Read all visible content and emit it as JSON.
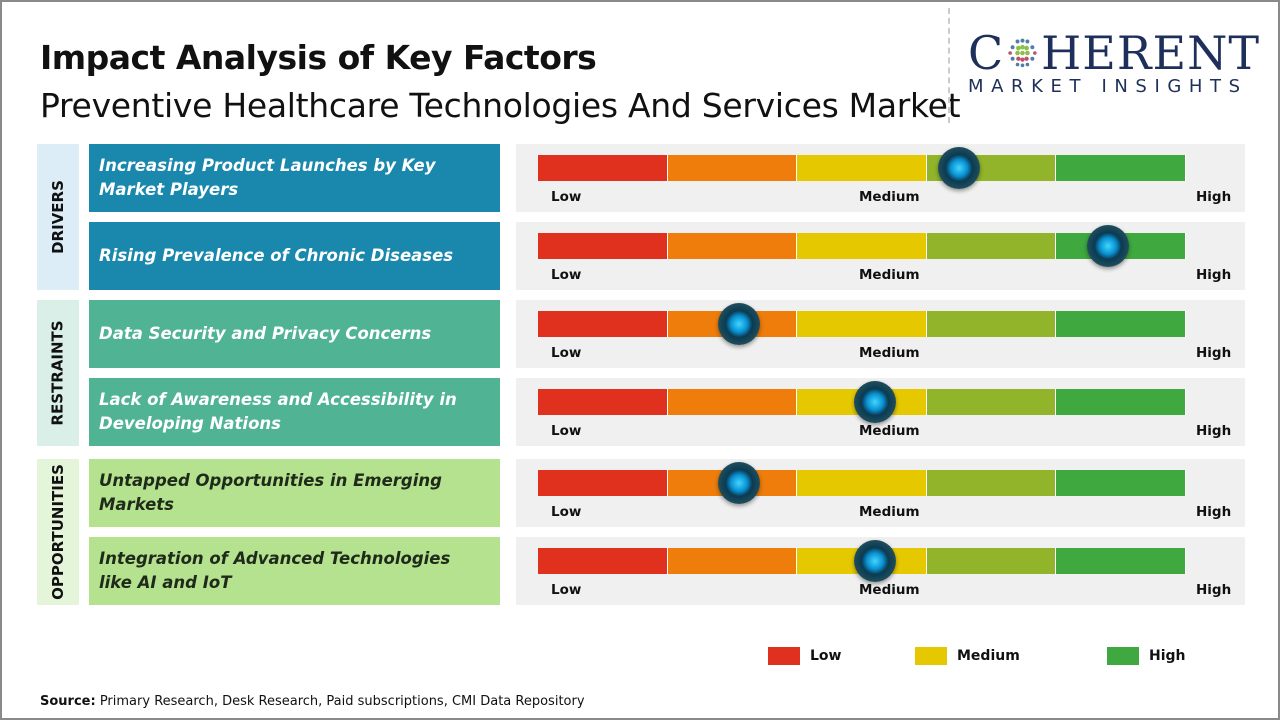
{
  "title": "Impact Analysis of Key Factors",
  "subtitle": "Preventive Healthcare Technologies And Services Market",
  "logo": {
    "main": "COHERENT",
    "sub": "MARKET INSIGHTS"
  },
  "colors": {
    "low": "#e0301e",
    "low_mid": "#ee7d0b",
    "medium": "#e6c800",
    "mid_high": "#92b42a",
    "high": "#3fa83f",
    "drivers": "#1a87ad",
    "restraints": "#4fb394",
    "opportunities": "#b5e28e"
  },
  "scale_labels": {
    "low": "Low",
    "medium": "Medium",
    "high": "High"
  },
  "chart_data": {
    "type": "gauge",
    "scale": [
      "Low",
      "Medium",
      "High"
    ],
    "groups": [
      {
        "name": "DRIVERS",
        "items": [
          {
            "label": "Increasing Product Launches by Key Market Players",
            "impact_pct": 65
          },
          {
            "label": "Rising Prevalence of Chronic Diseases",
            "impact_pct": 88
          }
        ]
      },
      {
        "name": "RESTRAINTS",
        "items": [
          {
            "label": "Data Security and Privacy Concerns",
            "impact_pct": 31
          },
          {
            "label": "Lack of Awareness and Accessibility in Developing Nations",
            "impact_pct": 52
          }
        ]
      },
      {
        "name": "OPPORTUNITIES",
        "items": [
          {
            "label": "Untapped Opportunities in Emerging Markets",
            "impact_pct": 31
          },
          {
            "label": "Integration of Advanced Technologies like AI and IoT",
            "impact_pct": 52
          }
        ]
      }
    ],
    "legend": [
      "Low",
      "Medium",
      "High"
    ]
  },
  "source": {
    "label": "Source:",
    "text": " Primary Research, Desk Research, Paid subscriptions, CMI Data Repository"
  }
}
